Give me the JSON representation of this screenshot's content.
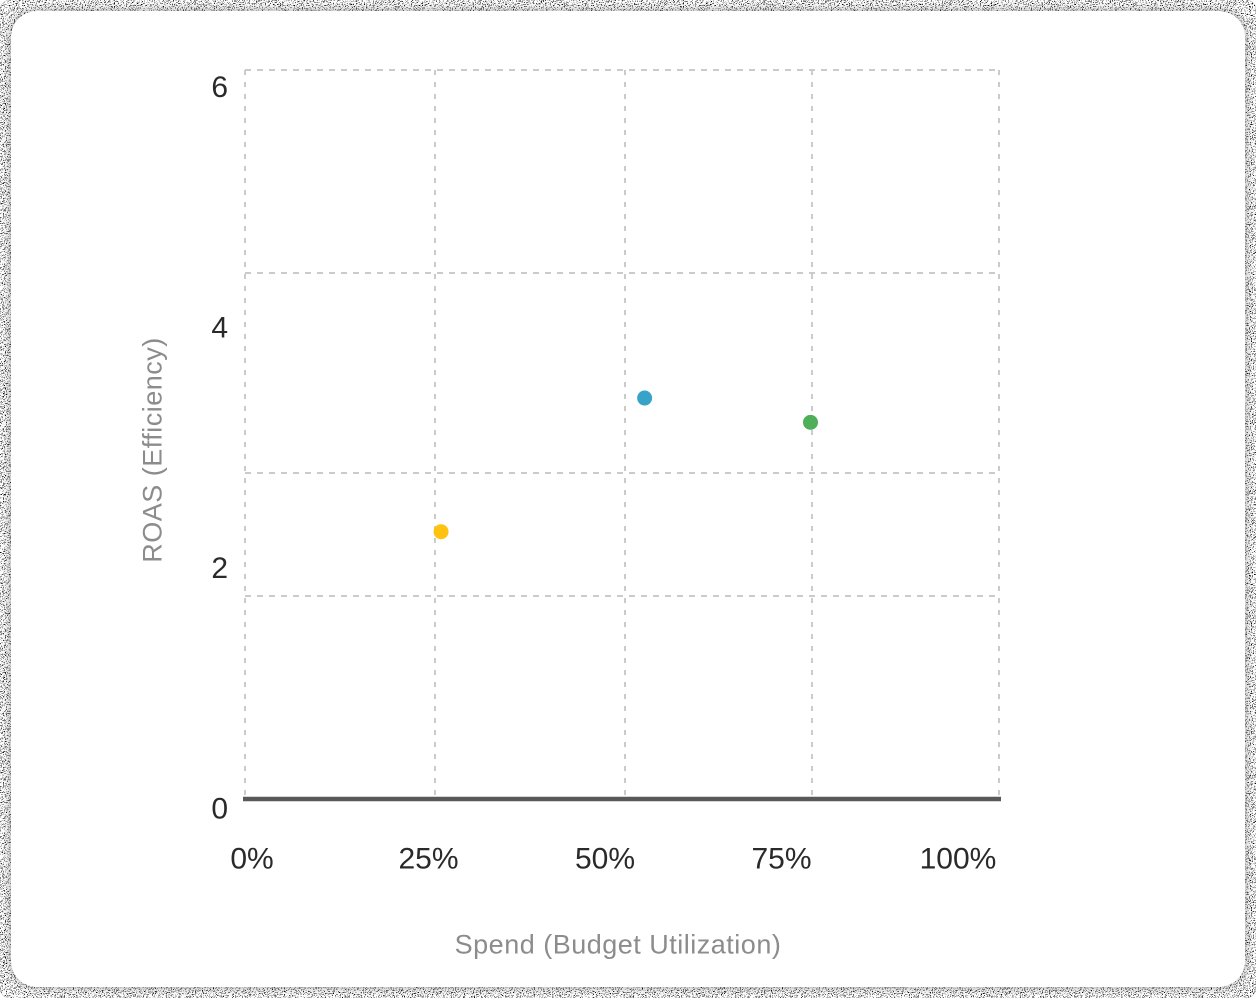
{
  "chart_data": {
    "type": "scatter",
    "title": "",
    "xlabel": "Spend (Budget Utilization)",
    "ylabel": "ROAS (Efficiency)",
    "x_ticks": [
      "0%",
      "25%",
      "50%",
      "75%",
      "100%"
    ],
    "y_ticks": [
      "0",
      "2",
      "4",
      "6"
    ],
    "xlim": [
      0,
      100
    ],
    "ylim": [
      0,
      6
    ],
    "grid": "dashed, horizontal and vertical, light gray",
    "legend": "none",
    "points": [
      {
        "x": 26,
        "y": 2.2,
        "color": "#fec20f"
      },
      {
        "x": 53,
        "y": 3.3,
        "color": "#38a3c8"
      },
      {
        "x": 75,
        "y": 3.1,
        "color": "#4fae58"
      }
    ],
    "styles": {
      "axis_line_color": "#59595b",
      "grid_color": "#cbcbcb",
      "tick_text_color": "#2a2a2a",
      "axis_title_color": "#8c8c8c",
      "point_radius": 7.5,
      "card_background": "#ffffff",
      "frame_background": "black-and-white static noise"
    }
  }
}
